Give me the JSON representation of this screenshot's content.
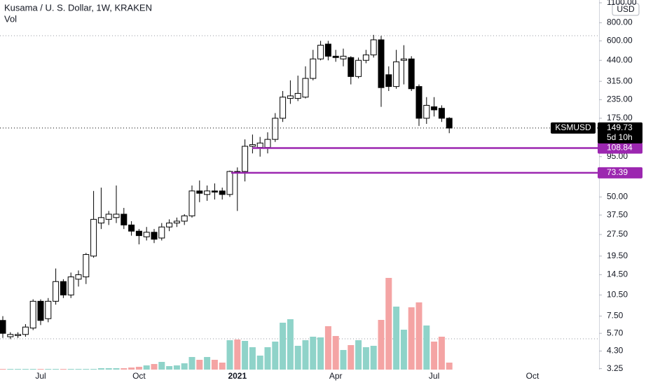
{
  "chart_data": {
    "type": "candlestick",
    "title": "Kusama / U. S. Dollar, 1W, KRAKEN",
    "subtitle": "Vol",
    "currency": "USD",
    "symbol": "KSMUSD",
    "last_price": 149.73,
    "countdown": "5d 10h",
    "log_scale": true,
    "up_color": "#ffffff",
    "down_color": "#000000",
    "volume_up_color": "#8fd3c9",
    "volume_down_color": "#f4a4a4",
    "level_color": "#9c27b0",
    "levels": [
      108.84,
      73.39
    ],
    "categories": [
      null,
      null,
      null,
      null,
      null,
      "Jul",
      null,
      null,
      null,
      null,
      null,
      null,
      null,
      null,
      null,
      null,
      null,
      null,
      "Oct",
      null,
      null,
      null,
      null,
      null,
      null,
      null,
      null,
      null,
      null,
      null,
      null,
      "2021",
      null,
      null,
      null,
      null,
      null,
      null,
      null,
      null,
      null,
      null,
      null,
      null,
      "Apr",
      null,
      null,
      null,
      null,
      null,
      null,
      null,
      null,
      null,
      null,
      null,
      null,
      "Jul",
      null,
      null,
      null,
      null,
      null,
      null,
      null,
      null,
      null,
      null,
      null,
      null,
      "Oct",
      null,
      null,
      null
    ],
    "open": [
      7,
      5.4,
      5.5,
      5.6,
      6.2,
      9.5,
      7.2,
      9.5,
      13,
      10.5,
      13.5,
      14,
      19.5,
      33,
      35,
      36,
      38,
      32,
      29,
      26.5,
      28.5,
      26,
      31,
      33,
      34,
      37,
      55,
      52,
      55,
      55,
      52,
      75,
      75,
      112,
      110,
      110,
      125,
      175,
      240,
      240,
      245,
      330,
      450,
      570,
      470,
      450,
      460,
      340,
      440,
      480,
      610,
      350,
      290,
      440,
      450,
      290,
      175,
      210,
      205,
      175,
      null,
      null,
      null,
      null,
      null,
      null,
      null,
      null,
      null,
      null,
      null,
      null,
      null,
      null
    ],
    "high": [
      7.5,
      5.8,
      5.8,
      6.6,
      9.8,
      9.8,
      10,
      16,
      13.5,
      15,
      15.5,
      20.5,
      55,
      58,
      40,
      60,
      42,
      34,
      30,
      31,
      30,
      33,
      35,
      36,
      38,
      60,
      65,
      60,
      62,
      58,
      76,
      80,
      125,
      135,
      130,
      140,
      190,
      270,
      320,
      345,
      400,
      520,
      600,
      600,
      520,
      530,
      470,
      460,
      520,
      660,
      650,
      400,
      520,
      560,
      470,
      300,
      245,
      245,
      215,
      178,
      null,
      null,
      null,
      null,
      null,
      null,
      null,
      null,
      null,
      null,
      null,
      null,
      null,
      null
    ],
    "low": [
      5.3,
      5.2,
      5.3,
      5.4,
      6,
      6.5,
      6.8,
      9,
      10,
      10,
      12,
      12.5,
      19,
      30,
      32,
      33,
      30,
      27,
      23.5,
      25,
      24,
      25,
      29,
      31,
      32,
      36,
      46,
      47,
      48,
      48,
      50,
      40,
      64,
      100,
      95,
      100,
      120,
      165,
      220,
      230,
      240,
      320,
      440,
      440,
      430,
      400,
      300,
      330,
      420,
      460,
      210,
      270,
      280,
      300,
      270,
      155,
      160,
      180,
      165,
      138,
      null,
      null,
      null,
      null,
      null,
      null,
      null,
      null,
      null,
      null,
      null,
      null,
      null,
      null
    ],
    "close": [
      5.7,
      5.6,
      5.6,
      6.3,
      9.5,
      7,
      9.5,
      13,
      10.5,
      14,
      14.5,
      20,
      35,
      36,
      38,
      38,
      32,
      29,
      27,
      28.5,
      25.5,
      31,
      33,
      34,
      37,
      55,
      53,
      55,
      54,
      52,
      75,
      74,
      112,
      115,
      118,
      125,
      175,
      245,
      250,
      260,
      330,
      450,
      560,
      470,
      460,
      470,
      340,
      440,
      480,
      610,
      285,
      290,
      430,
      450,
      280,
      175,
      215,
      200,
      175,
      149.73,
      null,
      null,
      null,
      null,
      null,
      null,
      null,
      null,
      null,
      null,
      null,
      null,
      null,
      null
    ],
    "volume": [
      1,
      1,
      1,
      1,
      1,
      1,
      1,
      1,
      1,
      1,
      1,
      1,
      1,
      2,
      2,
      2,
      2,
      3,
      4,
      6,
      8,
      11,
      5,
      6,
      9,
      18,
      14,
      18,
      14,
      10,
      42,
      43,
      41,
      32,
      20,
      32,
      40,
      67,
      72,
      34,
      42,
      47,
      46,
      62,
      48,
      28,
      35,
      42,
      32,
      34,
      71,
      131,
      90,
      57,
      89,
      96,
      63,
      40,
      47,
      10,
      null,
      null,
      null,
      null,
      null,
      null,
      null,
      null,
      null,
      null,
      null,
      null,
      null,
      null
    ],
    "ylim": [
      3.2,
      1150
    ],
    "yticks": [
      3.25,
      {
        "value": 4.3,
        "label": "4.30"
      },
      {
        "value": 5.7,
        "label": "5.70"
      },
      {
        "value": 7.5,
        "label": "7.50"
      },
      {
        "value": 10.5,
        "label": "10.50"
      },
      {
        "value": 14.5,
        "label": "14.50"
      },
      {
        "value": 19.5,
        "label": "19.50"
      },
      {
        "value": 27.5,
        "label": "27.50"
      },
      {
        "value": 37.5,
        "label": "37.50"
      },
      {
        "value": 50,
        "label": "50.00"
      },
      {
        "value": 95,
        "label": "95.00"
      },
      {
        "value": 175,
        "label": "175.00"
      },
      {
        "value": 235,
        "label": "235.00"
      },
      {
        "value": 315,
        "label": "315.00"
      },
      {
        "value": 440,
        "label": "440.00"
      },
      {
        "value": 600,
        "label": "600.00"
      },
      {
        "value": 800,
        "label": "800.00"
      },
      {
        "value": 1100,
        "label": "1100.00"
      }
    ]
  }
}
